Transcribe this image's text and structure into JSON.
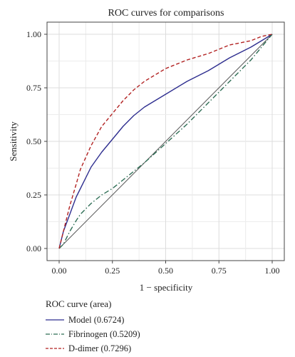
{
  "chart_data": {
    "type": "line",
    "title": "ROC curves for comparisons",
    "xlabel": "1 − specificity",
    "ylabel": "Sensitivity",
    "xlim": [
      0,
      1
    ],
    "ylim": [
      0,
      1
    ],
    "xticks": [
      "0.00",
      "0.25",
      "0.50",
      "0.75",
      "1.00"
    ],
    "yticks": [
      "0.00",
      "0.25",
      "0.50",
      "0.75",
      "1.00"
    ],
    "grid": true,
    "legend_title": "ROC curve (area)",
    "legend_position": "bottom",
    "reference_line": {
      "x": [
        0,
        1
      ],
      "y": [
        0,
        1
      ]
    },
    "series": [
      {
        "name": "Model (0.6724)",
        "color": "#2e2e8f",
        "dash": "solid",
        "x": [
          0,
          0.02,
          0.05,
          0.08,
          0.1,
          0.15,
          0.2,
          0.25,
          0.3,
          0.35,
          0.4,
          0.5,
          0.6,
          0.7,
          0.8,
          0.9,
          0.95,
          1.0
        ],
        "y": [
          0,
          0.08,
          0.16,
          0.24,
          0.28,
          0.38,
          0.45,
          0.51,
          0.57,
          0.62,
          0.66,
          0.72,
          0.78,
          0.83,
          0.89,
          0.94,
          0.97,
          1.0
        ]
      },
      {
        "name": "Fibrinogen (0.5209)",
        "color": "#2e6e55",
        "dash": "dashdot",
        "x": [
          0,
          0.02,
          0.05,
          0.08,
          0.1,
          0.15,
          0.2,
          0.25,
          0.3,
          0.4,
          0.5,
          0.6,
          0.7,
          0.8,
          0.9,
          1.0
        ],
        "y": [
          0,
          0.02,
          0.08,
          0.13,
          0.16,
          0.21,
          0.25,
          0.28,
          0.32,
          0.4,
          0.49,
          0.58,
          0.68,
          0.78,
          0.88,
          1.0
        ]
      },
      {
        "name": "D-dimer (0.7296)",
        "color": "#b22222",
        "dash": "dashed",
        "x": [
          0,
          0.02,
          0.05,
          0.08,
          0.1,
          0.15,
          0.2,
          0.25,
          0.3,
          0.35,
          0.4,
          0.5,
          0.6,
          0.7,
          0.8,
          0.9,
          0.95,
          1.0
        ],
        "y": [
          0,
          0.08,
          0.2,
          0.3,
          0.37,
          0.48,
          0.57,
          0.63,
          0.69,
          0.74,
          0.78,
          0.84,
          0.88,
          0.91,
          0.95,
          0.97,
          0.99,
          1.0
        ]
      }
    ]
  }
}
